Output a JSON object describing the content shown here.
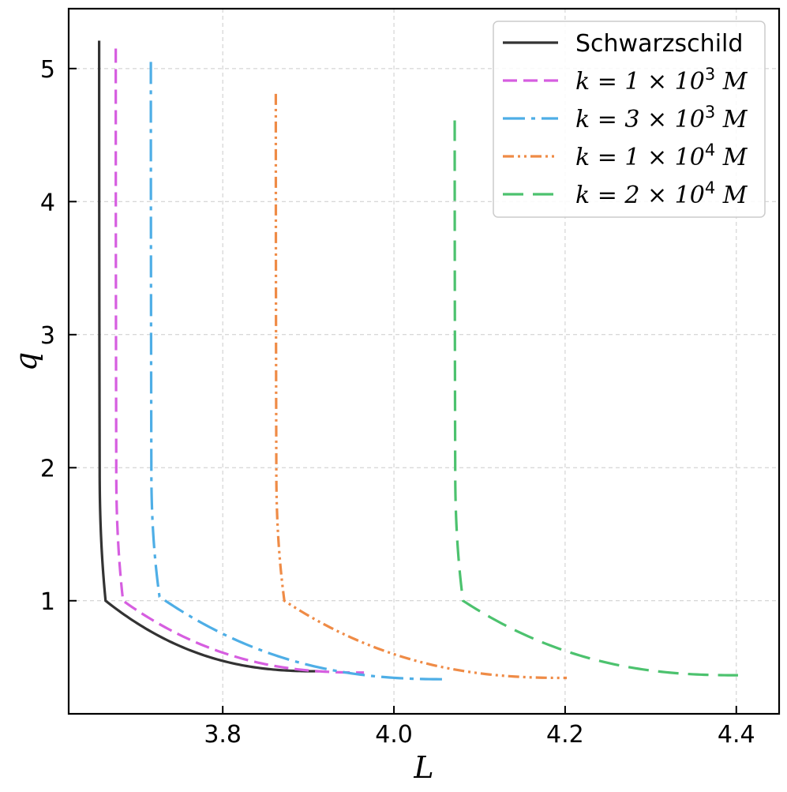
{
  "chart_data": {
    "type": "line",
    "xlabel": "L",
    "ylabel": "q",
    "xlim": [
      3.62,
      4.45
    ],
    "ylim": [
      0.15,
      5.45
    ],
    "xticks": [
      {
        "value": 3.8,
        "label": "3.8"
      },
      {
        "value": 4.0,
        "label": "4.0"
      },
      {
        "value": 4.2,
        "label": "4.2"
      },
      {
        "value": 4.4,
        "label": "4.4"
      }
    ],
    "yticks": [
      {
        "value": 1,
        "label": "1"
      },
      {
        "value": 2,
        "label": "2"
      },
      {
        "value": 3,
        "label": "3"
      },
      {
        "value": 4,
        "label": "4"
      },
      {
        "value": 5,
        "label": "5"
      }
    ],
    "grid": true,
    "legend_position": "top-right",
    "series": [
      {
        "name": "Schwarzschild",
        "legend_base": "Schwarzschild",
        "legend_exp": "",
        "legend_tail": "",
        "color": "#333333",
        "dash": "solid",
        "Lmin": 3.6556,
        "Lmax": 3.912,
        "q_top": 5.21,
        "q_end": 0.47,
        "knee": 1.0
      },
      {
        "name": "k = 1 × 10^3 M",
        "legend_base": "k = 1 × 10",
        "legend_exp": "3",
        "legend_tail": " M",
        "color": "#d65ee0",
        "dash": "dashed",
        "Lmin": 3.675,
        "Lmax": 3.965,
        "q_top": 5.15,
        "q_end": 0.46,
        "knee": 1.0
      },
      {
        "name": "k = 3 × 10^3 M",
        "legend_base": "k = 3 × 10",
        "legend_exp": "3",
        "legend_tail": " M",
        "color": "#4eaee6",
        "dash": "dashdot",
        "Lmin": 3.716,
        "Lmax": 4.062,
        "q_top": 5.05,
        "q_end": 0.41,
        "knee": 1.03
      },
      {
        "name": "k = 1 × 10^4 M",
        "legend_base": "k = 1 × 10",
        "legend_exp": "4",
        "legend_tail": " M",
        "color": "#ef8b46",
        "dash": "dashdotdot",
        "Lmin": 3.862,
        "Lmax": 4.202,
        "q_top": 4.81,
        "q_end": 0.42,
        "knee": 1.0
      },
      {
        "name": "k = 2 × 10^4 M",
        "legend_base": "k = 2 × 10",
        "legend_exp": "4",
        "legend_tail": " M",
        "color": "#4cc26e",
        "dash": "longdash",
        "Lmin": 4.071,
        "Lmax": 4.402,
        "q_top": 4.61,
        "q_end": 0.44,
        "knee": 1.0
      }
    ]
  }
}
